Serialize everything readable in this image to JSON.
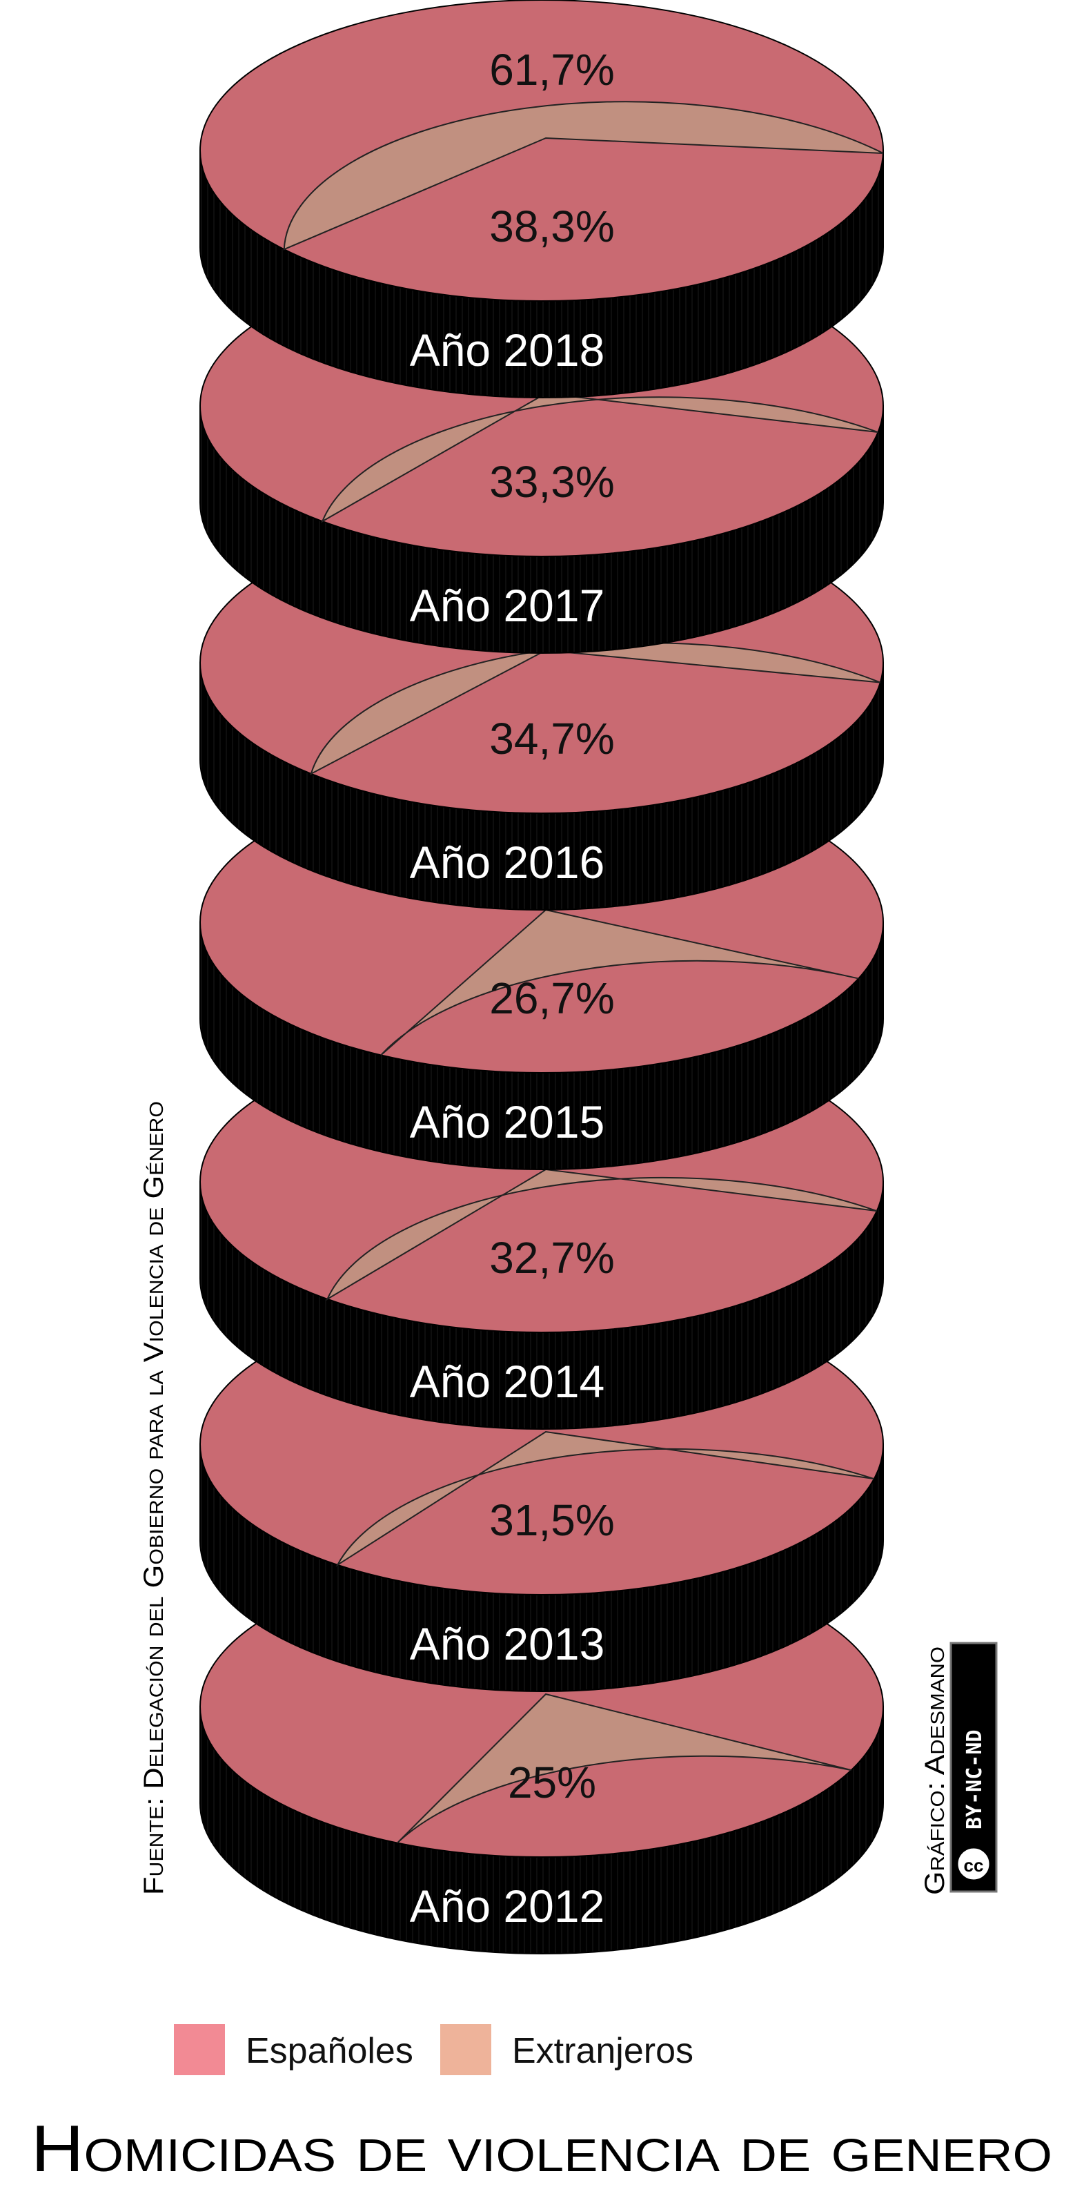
{
  "chart_data": {
    "type": "pie",
    "title": "Homicidas de violencia de genero",
    "source": "Fuente: Delegación del Gobierno para la Violencia de Género",
    "credit": "Gráfico: Adesmano",
    "license_badge": "BY-NC-ND",
    "legend": [
      {
        "label": "Españoles",
        "color": "#f28a94"
      },
      {
        "label": "Extranjeros",
        "color": "#eeb39a"
      }
    ],
    "slice_colors": {
      "espanoles": "#c96a72",
      "extranjeros": "#c19080"
    },
    "years": [
      {
        "label": "Año 2018",
        "espanoles": 61.7,
        "extranjeros": 38.3,
        "espanoles_label": "61,7%",
        "extranjeros_label": "38,3%"
      },
      {
        "label": "Año 2017",
        "espanoles": 66.7,
        "extranjeros": 33.3,
        "extranjeros_label": "33,3%"
      },
      {
        "label": "Año 2016",
        "espanoles": 65.3,
        "extranjeros": 34.7,
        "extranjeros_label": "34,7%"
      },
      {
        "label": "Año 2015",
        "espanoles": 73.3,
        "extranjeros": 26.7,
        "extranjeros_label": "26,7%"
      },
      {
        "label": "Año 2014",
        "espanoles": 67.3,
        "extranjeros": 32.7,
        "extranjeros_label": "32,7%"
      },
      {
        "label": "Año 2013",
        "espanoles": 68.5,
        "extranjeros": 31.5,
        "extranjeros_label": "31,5%"
      },
      {
        "label": "Año 2012",
        "espanoles": 75,
        "extranjeros": 25,
        "extranjeros_label": "25%"
      }
    ]
  }
}
